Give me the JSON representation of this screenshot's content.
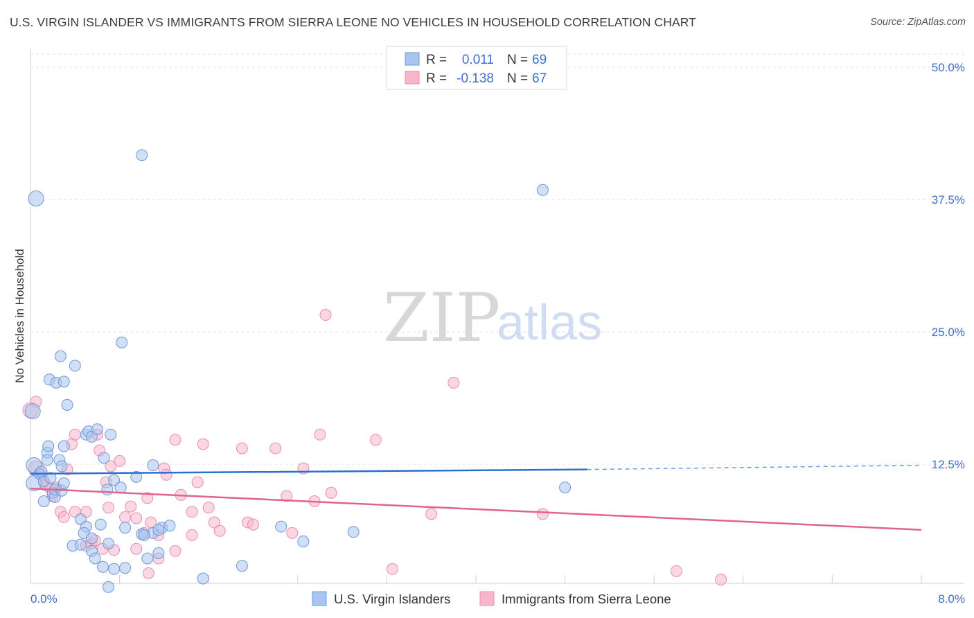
{
  "title": "U.S. VIRGIN ISLANDER VS IMMIGRANTS FROM SIERRA LEONE NO VEHICLES IN HOUSEHOLD CORRELATION CHART",
  "source": "Source: ZipAtlas.com",
  "watermark": {
    "zip": "ZIP",
    "atlas": "atlas"
  },
  "colors": {
    "blue_fill": "#a9c4ef",
    "blue_stroke": "#6e98d8",
    "blue_line": "#2a6fd1",
    "pink_fill": "#f6b7cb",
    "pink_stroke": "#ea8eab",
    "pink_line": "#e0638f",
    "axis_text": "#3d6fcf",
    "grid": "#e2e2e2"
  },
  "legend_top": [
    {
      "r_label": "R =",
      "r_value": "0.011",
      "n_label": "N =",
      "n_value": "69"
    },
    {
      "r_label": "R =",
      "r_value": "-0.138",
      "n_label": "N =",
      "n_value": "67"
    }
  ],
  "chart_data": {
    "type": "scatter",
    "title": "U.S. VIRGIN ISLANDER VS IMMIGRANTS FROM SIERRA LEONE NO VEHICLES IN HOUSEHOLD CORRELATION CHART",
    "xlabel": "",
    "ylabel": "No Vehicles in Household",
    "xlim": [
      0,
      8.4
    ],
    "ylim": [
      0,
      52
    ],
    "x_tick_labels": [
      "0.0%",
      "8.0%"
    ],
    "y_ticks": [
      12.5,
      25.0,
      37.5,
      50.0
    ],
    "y_tick_labels": [
      "12.5%",
      "25.0%",
      "37.5%",
      "50.0%"
    ],
    "grid": "horizontal dashed",
    "legend_position": "top-center",
    "series": [
      {
        "name": "U.S. Virgin Islanders",
        "color": "#a9c4ef",
        "r": 0.011,
        "n": 69,
        "trend": {
          "x0": 0.0,
          "y0": 11.6,
          "x1": 5.0,
          "y1": 12.0,
          "dash_to_x": 8.0,
          "dash_to_y": 12.4
        },
        "points": [
          [
            0.05,
            37.6,
            1
          ],
          [
            1.0,
            41.7,
            0
          ],
          [
            4.6,
            38.4,
            0
          ],
          [
            0.02,
            17.5,
            1
          ],
          [
            0.03,
            12.4,
            1
          ],
          [
            0.03,
            10.7,
            1
          ],
          [
            0.08,
            11.6,
            0
          ],
          [
            0.1,
            11.8,
            0
          ],
          [
            0.12,
            10.9,
            0
          ],
          [
            0.15,
            13.6,
            0
          ],
          [
            0.16,
            14.2,
            0
          ],
          [
            0.15,
            12.9,
            0
          ],
          [
            0.18,
            11.2,
            0
          ],
          [
            0.2,
            9.8,
            0
          ],
          [
            0.22,
            9.4,
            0
          ],
          [
            0.12,
            9.0,
            0
          ],
          [
            0.26,
            12.9,
            0
          ],
          [
            0.28,
            12.3,
            0
          ],
          [
            0.22,
            10.1,
            0
          ],
          [
            0.3,
            14.2,
            0
          ],
          [
            0.28,
            10.0,
            0
          ],
          [
            0.3,
            10.7,
            0
          ],
          [
            0.27,
            22.7,
            0
          ],
          [
            0.17,
            20.5,
            0
          ],
          [
            0.23,
            20.2,
            0
          ],
          [
            0.3,
            20.3,
            0
          ],
          [
            0.33,
            18.1,
            0
          ],
          [
            0.4,
            21.8,
            0
          ],
          [
            0.5,
            15.3,
            0
          ],
          [
            0.52,
            15.6,
            0
          ],
          [
            0.55,
            15.1,
            0
          ],
          [
            0.6,
            15.8,
            0
          ],
          [
            0.66,
            13.1,
            0
          ],
          [
            0.72,
            15.3,
            0
          ],
          [
            0.69,
            10.1,
            0
          ],
          [
            0.75,
            11.0,
            0
          ],
          [
            0.81,
            10.3,
            0
          ],
          [
            0.82,
            24.0,
            0
          ],
          [
            0.95,
            11.3,
            0
          ],
          [
            1.1,
            12.4,
            0
          ],
          [
            0.45,
            7.3,
            0
          ],
          [
            0.5,
            6.6,
            0
          ],
          [
            0.48,
            6.0,
            0
          ],
          [
            0.55,
            5.5,
            0
          ],
          [
            0.63,
            6.8,
            0
          ],
          [
            0.7,
            5.0,
            0
          ],
          [
            0.85,
            6.5,
            0
          ],
          [
            1.0,
            5.9,
            0
          ],
          [
            1.1,
            6.0,
            0
          ],
          [
            1.18,
            6.5,
            0
          ],
          [
            1.15,
            6.3,
            0
          ],
          [
            1.25,
            6.7,
            0
          ],
          [
            0.38,
            4.8,
            0
          ],
          [
            0.45,
            4.9,
            0
          ],
          [
            0.55,
            4.3,
            0
          ],
          [
            0.58,
            3.6,
            0
          ],
          [
            0.65,
            2.8,
            0
          ],
          [
            0.75,
            2.6,
            0
          ],
          [
            0.85,
            2.7,
            0
          ],
          [
            1.05,
            3.6,
            0
          ],
          [
            1.15,
            4.1,
            0
          ],
          [
            1.55,
            1.7,
            0
          ],
          [
            1.9,
            2.9,
            0
          ],
          [
            2.25,
            6.6,
            0
          ],
          [
            2.45,
            5.2,
            0
          ],
          [
            2.9,
            6.1,
            0
          ],
          [
            4.8,
            10.3,
            0
          ],
          [
            0.7,
            0.9,
            0
          ],
          [
            1.02,
            5.8,
            0
          ]
        ]
      },
      {
        "name": "Immigrants from Sierra Leone",
        "color": "#f6b7cb",
        "r": -0.138,
        "n": 67,
        "trend": {
          "x0": 0.0,
          "y0": 10.2,
          "x1": 8.0,
          "y1": 6.3
        },
        "points": [
          [
            0.0,
            17.6,
            1
          ],
          [
            0.05,
            18.4,
            0
          ],
          [
            0.05,
            12.1,
            1
          ],
          [
            0.1,
            11.5,
            0
          ],
          [
            0.12,
            10.8,
            0
          ],
          [
            0.14,
            10.5,
            0
          ],
          [
            0.18,
            10.2,
            0
          ],
          [
            0.2,
            9.5,
            0
          ],
          [
            0.23,
            10.3,
            0
          ],
          [
            0.27,
            8.0,
            0
          ],
          [
            0.3,
            7.5,
            0
          ],
          [
            0.33,
            12.0,
            0
          ],
          [
            0.37,
            14.4,
            0
          ],
          [
            0.4,
            15.3,
            0
          ],
          [
            0.5,
            8.0,
            0
          ],
          [
            0.55,
            5.0,
            0
          ],
          [
            0.58,
            5.3,
            0
          ],
          [
            0.6,
            15.3,
            0
          ],
          [
            0.62,
            13.8,
            0
          ],
          [
            0.68,
            10.8,
            0
          ],
          [
            0.7,
            8.4,
            0
          ],
          [
            0.72,
            12.3,
            0
          ],
          [
            0.8,
            12.8,
            0
          ],
          [
            0.85,
            7.5,
            0
          ],
          [
            0.9,
            8.5,
            0
          ],
          [
            0.95,
            7.4,
            0
          ],
          [
            1.02,
            6.0,
            0
          ],
          [
            1.05,
            9.3,
            0
          ],
          [
            1.08,
            7.0,
            0
          ],
          [
            1.15,
            5.8,
            0
          ],
          [
            1.2,
            12.1,
            0
          ],
          [
            1.22,
            11.5,
            0
          ],
          [
            1.3,
            14.8,
            0
          ],
          [
            1.35,
            9.6,
            0
          ],
          [
            1.45,
            8.0,
            0
          ],
          [
            1.5,
            10.8,
            0
          ],
          [
            1.55,
            14.4,
            0
          ],
          [
            1.6,
            8.4,
            0
          ],
          [
            1.65,
            7.0,
            0
          ],
          [
            1.7,
            6.2,
            0
          ],
          [
            1.9,
            14.0,
            0
          ],
          [
            1.95,
            7.0,
            0
          ],
          [
            2.0,
            6.8,
            0
          ],
          [
            2.2,
            14.0,
            0
          ],
          [
            2.3,
            9.5,
            0
          ],
          [
            2.35,
            6.0,
            0
          ],
          [
            2.45,
            12.1,
            0
          ],
          [
            2.55,
            9.0,
            0
          ],
          [
            2.6,
            15.3,
            0
          ],
          [
            2.65,
            26.6,
            0
          ],
          [
            2.7,
            9.8,
            0
          ],
          [
            3.1,
            14.8,
            0
          ],
          [
            3.25,
            2.6,
            0
          ],
          [
            3.6,
            7.8,
            0
          ],
          [
            3.8,
            20.2,
            0
          ],
          [
            4.6,
            7.8,
            0
          ],
          [
            5.8,
            2.4,
            0
          ],
          [
            6.2,
            1.6,
            0
          ],
          [
            0.65,
            4.5,
            0
          ],
          [
            0.75,
            4.4,
            0
          ],
          [
            0.95,
            4.5,
            0
          ],
          [
            1.06,
            2.2,
            0
          ],
          [
            1.15,
            3.6,
            0
          ],
          [
            1.3,
            4.3,
            0
          ],
          [
            1.45,
            5.8,
            0
          ],
          [
            0.5,
            4.8,
            0
          ],
          [
            0.4,
            8.0,
            0
          ]
        ]
      }
    ]
  }
}
